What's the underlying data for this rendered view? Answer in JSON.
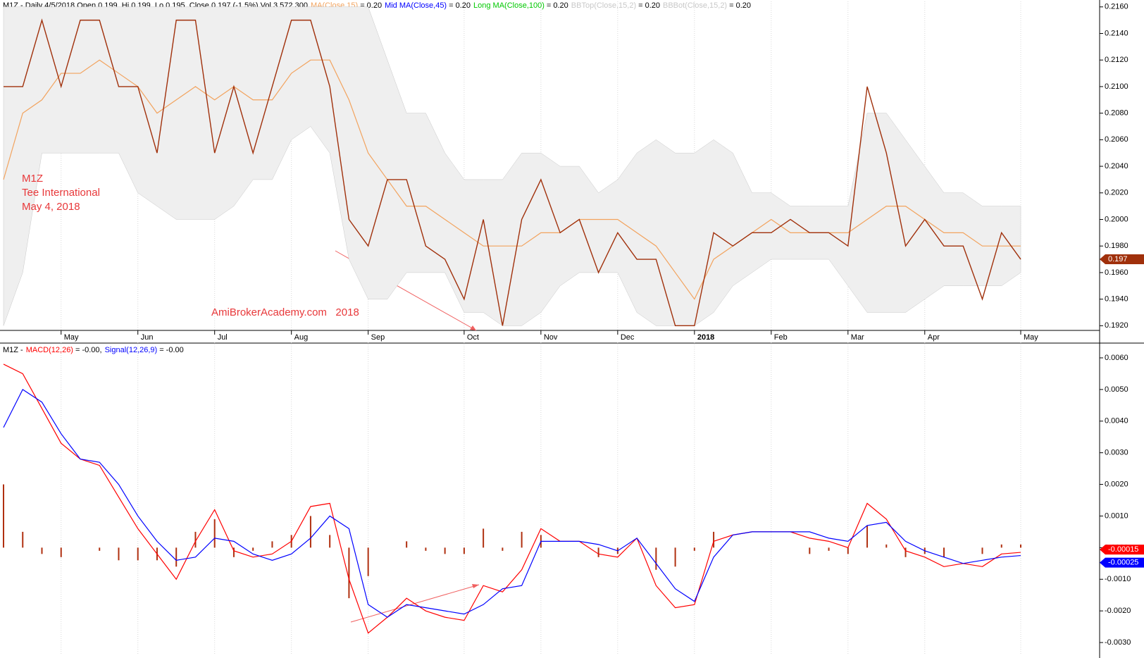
{
  "chart_data": [
    {
      "type": "line",
      "title": "M1Z - Daily 4/5/2018 Open 0.199, Hi 0.199, Lo 0.195, Close 0.197 (-1.5%) Vol 3,572,300",
      "categories": [
        null,
        null,
        null,
        "May",
        null,
        null,
        null,
        "Jun",
        null,
        null,
        null,
        "Jul",
        null,
        null,
        null,
        "Aug",
        null,
        null,
        null,
        "Sep",
        null,
        null,
        null,
        null,
        "Oct",
        null,
        null,
        null,
        "Nov",
        null,
        null,
        null,
        "Dec",
        null,
        null,
        null,
        "2018",
        null,
        null,
        null,
        "Feb",
        null,
        null,
        null,
        "Mar",
        null,
        null,
        null,
        "Apr",
        null,
        null,
        null,
        null,
        "May"
      ],
      "values": [
        0.21,
        0.21,
        0.215,
        0.21,
        0.215,
        0.215,
        0.21,
        0.21,
        0.205,
        0.215,
        0.215,
        0.205,
        0.21,
        0.205,
        0.21,
        0.215,
        0.215,
        0.21,
        0.2,
        0.198,
        0.203,
        0.203,
        0.198,
        0.197,
        0.194,
        0.2,
        0.192,
        0.2,
        0.203,
        0.199,
        0.2,
        0.196,
        0.199,
        0.197,
        0.197,
        0.192,
        0.192,
        0.199,
        0.198,
        0.199,
        0.199,
        0.2,
        0.199,
        0.199,
        0.198,
        0.21,
        0.205,
        0.198,
        0.2,
        0.198,
        0.198,
        0.194,
        0.199,
        0.197
      ],
      "color": "#a0300b",
      "series": [
        {
          "name": "MA(Close,15)",
          "legend_value": "= 0.20",
          "color": "#f2a35e",
          "style": "line",
          "values": [
            0.203,
            0.208,
            0.209,
            0.211,
            0.211,
            0.212,
            0.211,
            0.21,
            0.208,
            0.209,
            0.21,
            0.209,
            0.21,
            0.209,
            0.209,
            0.211,
            0.212,
            0.212,
            0.209,
            0.205,
            0.203,
            0.201,
            0.201,
            0.2,
            0.199,
            0.198,
            0.198,
            0.198,
            0.199,
            0.199,
            0.2,
            0.2,
            0.2,
            0.199,
            0.198,
            0.196,
            0.194,
            0.197,
            0.198,
            0.199,
            0.2,
            0.199,
            0.199,
            0.199,
            0.199,
            0.2,
            0.201,
            0.201,
            0.2,
            0.199,
            0.199,
            0.198,
            0.198,
            0.198
          ]
        },
        {
          "name": "Mid MA(Close,45)",
          "legend_value": "= 0.20",
          "color": "#0000ff",
          "style": "none"
        },
        {
          "name": "Long MA(Close,100)",
          "legend_value": "= 0.20",
          "color": "#00c800",
          "style": "none"
        },
        {
          "name": "BBTop(Close,15,2)",
          "legend_value": "= 0.20",
          "color": "#c8c8c8",
          "style": "band-top",
          "values": [
            0.216,
            0.216,
            0.216,
            0.216,
            0.216,
            0.216,
            0.216,
            0.216,
            0.216,
            0.216,
            0.216,
            0.216,
            0.216,
            0.216,
            0.216,
            0.216,
            0.216,
            0.216,
            0.216,
            0.216,
            0.212,
            0.208,
            0.208,
            0.205,
            0.203,
            0.203,
            0.203,
            0.205,
            0.205,
            0.204,
            0.204,
            0.202,
            0.203,
            0.205,
            0.206,
            0.205,
            0.205,
            0.206,
            0.205,
            0.202,
            0.202,
            0.201,
            0.201,
            0.201,
            0.201,
            0.208,
            0.208,
            0.206,
            0.204,
            0.202,
            0.202,
            0.201,
            0.201,
            0.201
          ]
        },
        {
          "name": "BBBot(Close,15,2)",
          "legend_value": "= 0.20",
          "color": "#c8c8c8",
          "style": "band-bottom",
          "values": [
            0.192,
            0.196,
            0.205,
            0.205,
            0.205,
            0.205,
            0.205,
            0.202,
            0.201,
            0.2,
            0.2,
            0.2,
            0.201,
            0.203,
            0.203,
            0.206,
            0.207,
            0.205,
            0.197,
            0.194,
            0.194,
            0.196,
            0.196,
            0.196,
            0.193,
            0.193,
            0.192,
            0.192,
            0.193,
            0.195,
            0.196,
            0.196,
            0.196,
            0.193,
            0.192,
            0.192,
            0.192,
            0.193,
            0.195,
            0.196,
            0.197,
            0.197,
            0.197,
            0.197,
            0.195,
            0.193,
            0.193,
            0.193,
            0.194,
            0.195,
            0.195,
            0.195,
            0.195,
            0.196
          ]
        }
      ],
      "band_fill": "#efefef",
      "ylim": [
        0.1917,
        0.2162
      ],
      "yticks": [
        {
          "value": 0.192,
          "label": "0.1920"
        },
        {
          "value": 0.194,
          "label": "0.1940"
        },
        {
          "value": 0.196,
          "label": "0.1960"
        },
        {
          "value": 0.198,
          "label": "0.1980"
        },
        {
          "value": 0.2,
          "label": "0.2000"
        },
        {
          "value": 0.202,
          "label": "0.2020"
        },
        {
          "value": 0.204,
          "label": "0.2040"
        },
        {
          "value": 0.206,
          "label": "0.2060"
        },
        {
          "value": 0.208,
          "label": "0.2080"
        },
        {
          "value": 0.21,
          "label": "0.2100"
        },
        {
          "value": 0.212,
          "label": "0.2120"
        },
        {
          "value": 0.214,
          "label": "0.2140"
        },
        {
          "value": 0.216,
          "label": "0.2160"
        }
      ],
      "grid": true,
      "annotations": [
        "M1Z",
        "Tee International",
        "May 4, 2018",
        "AmiBrokerAcademy.com   2018"
      ]
    },
    {
      "type": "line",
      "title": "M1Z -",
      "series": [
        {
          "name": "MACD(12,26)",
          "legend_value": "= -0.00,",
          "color": "#ff0000",
          "style": "line",
          "values": [
            0.0058,
            0.0055,
            0.0044,
            0.0033,
            0.0028,
            0.0026,
            0.0016,
            0.0006,
            -0.0002,
            -0.001,
            0.0002,
            0.0012,
            -0.0001,
            -0.0003,
            -0.0002,
            0.0002,
            0.0013,
            0.0014,
            -0.001,
            -0.0027,
            -0.0022,
            -0.0016,
            -0.002,
            -0.0022,
            -0.0023,
            -0.0012,
            -0.0014,
            -0.0007,
            0.0006,
            0.0002,
            0.0002,
            -0.0002,
            -0.0003,
            0.0003,
            -0.0012,
            -0.0019,
            -0.0018,
            0.0002,
            0.0004,
            0.0005,
            0.0005,
            0.0005,
            0.0003,
            0.0002,
            0,
            0.0014,
            0.0009,
            -0.0001,
            -0.0003,
            -0.0006,
            -0.0005,
            -0.0006,
            -0.0002,
            -0.00015
          ]
        },
        {
          "name": "Signal(12,26,9)",
          "legend_value": "= -0.00",
          "color": "#0000ff",
          "style": "line",
          "values": [
            0.0038,
            0.005,
            0.0046,
            0.0036,
            0.0028,
            0.0027,
            0.002,
            0.001,
            0.0002,
            -0.0004,
            -0.0003,
            0.0003,
            0.0002,
            -0.0002,
            -0.0004,
            -0.0002,
            0.0003,
            0.001,
            0.0006,
            -0.0018,
            -0.0022,
            -0.0018,
            -0.0019,
            -0.002,
            -0.0021,
            -0.0018,
            -0.0013,
            -0.0012,
            0.0002,
            0.0002,
            0.0002,
            0.0001,
            -0.0001,
            0.0003,
            -0.0005,
            -0.0013,
            -0.0017,
            -0.0003,
            0.0004,
            0.0005,
            0.0005,
            0.0005,
            0.0005,
            0.0003,
            0.0002,
            0.0007,
            0.0008,
            0.0002,
            -0.0001,
            -0.0003,
            -0.0005,
            -0.0004,
            -0.0003,
            -0.00025
          ]
        },
        {
          "color": "#b03010",
          "style": "bar",
          "values": [
            0.002,
            0.0005,
            -0.0002,
            -0.0003,
            0,
            -0.0001,
            -0.0004,
            -0.0004,
            -0.0004,
            -0.0006,
            0.0005,
            0.0009,
            -0.0003,
            -0.0001,
            0.0002,
            0.0004,
            0.001,
            0.0004,
            -0.0016,
            -0.0009,
            0,
            0.0002,
            -0.0001,
            -0.0002,
            -0.0002,
            0.0006,
            -0.0001,
            0.0005,
            0.0004,
            0,
            0,
            -0.0003,
            -0.0002,
            0,
            -0.0007,
            -0.0006,
            -0.0001,
            0.0005,
            0,
            0,
            0,
            0,
            -0.0002,
            -0.0001,
            -0.0002,
            0.0007,
            0.0001,
            -0.0003,
            -0.0002,
            -0.0003,
            0,
            -0.0002,
            0.0001,
            0.0001
          ]
        }
      ],
      "ylim": [
        -0.0034,
        0.0064
      ],
      "yticks": [
        {
          "value": -0.003,
          "label": "-0.0030"
        },
        {
          "value": -0.002,
          "label": "-0.0020"
        },
        {
          "value": -0.001,
          "label": "-0.0010"
        },
        {
          "value": 0,
          "label": "0.0000"
        },
        {
          "value": 0.001,
          "label": "0.0010"
        },
        {
          "value": 0.002,
          "label": "0.0020"
        },
        {
          "value": 0.003,
          "label": "0.0030"
        },
        {
          "value": 0.004,
          "label": "0.0040"
        },
        {
          "value": 0.005,
          "label": "0.0050"
        },
        {
          "value": 0.006,
          "label": "0.0060"
        }
      ],
      "grid": true
    }
  ]
}
